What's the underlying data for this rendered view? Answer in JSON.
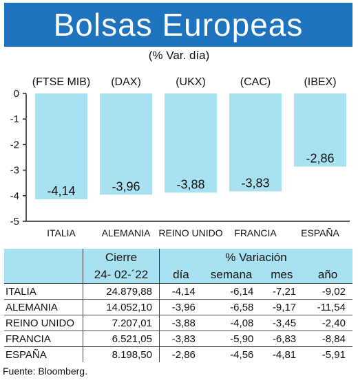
{
  "title": "Bolsas Europeas",
  "subtitle": "(% Var. día)",
  "colors": {
    "banner": "#1e73be",
    "bar": "#a8e2f2",
    "header": "#a8e2f2"
  },
  "chart_data": {
    "type": "bar",
    "title": "Bolsas Europeas",
    "subtitle": "(% Var. día)",
    "categories": [
      "ITALIA",
      "ALEMANIA",
      "REINO UNIDO",
      "FRANCIA",
      "ESPAÑA"
    ],
    "top_labels": [
      "(FTSE MIB)",
      "(DAX)",
      "(UKX)",
      "(CAC)",
      "(IBEX)"
    ],
    "values": [
      -4.14,
      -3.96,
      -3.88,
      -3.83,
      -2.86
    ],
    "value_labels": [
      "-4,14",
      "-3,96",
      "-3,88",
      "-3,83",
      "-2,86"
    ],
    "yticks": [
      "0",
      "-1",
      "-2",
      "-3",
      "-4",
      "-5"
    ],
    "ylim": [
      -5,
      0
    ],
    "xlabel": "",
    "ylabel": "",
    "grid": false
  },
  "table": {
    "group_cierre": "Cierre",
    "group_variacion": "% Variación",
    "date": "24- 02-´22",
    "columns": [
      "día",
      "semana",
      "mes",
      "año"
    ],
    "rows": [
      {
        "name": "ITALIA",
        "cierre": "24.879,88",
        "dia": "-4,14",
        "semana": "-6,14",
        "mes": "-7,21",
        "anio": "-9,02"
      },
      {
        "name": "ALEMANIA",
        "cierre": "14.052,10",
        "dia": "-3,96",
        "semana": "-6,58",
        "mes": "-9,17",
        "anio": "-11,54"
      },
      {
        "name": "REINO UNIDO",
        "cierre": "7.207,01",
        "dia": "-3,88",
        "semana": "-4,08",
        "mes": "-3,45",
        "anio": "-2,40"
      },
      {
        "name": "FRANCIA",
        "cierre": "6.521,05",
        "dia": "-3,83",
        "semana": "-5,90",
        "mes": "-6,83",
        "anio": "-8,84"
      },
      {
        "name": "ESPAÑA",
        "cierre": "8.198,50",
        "dia": "-2,86",
        "semana": "-4,56",
        "mes": "-4,81",
        "anio": "-5,91"
      }
    ]
  },
  "source": "Fuente: Bloomberg."
}
